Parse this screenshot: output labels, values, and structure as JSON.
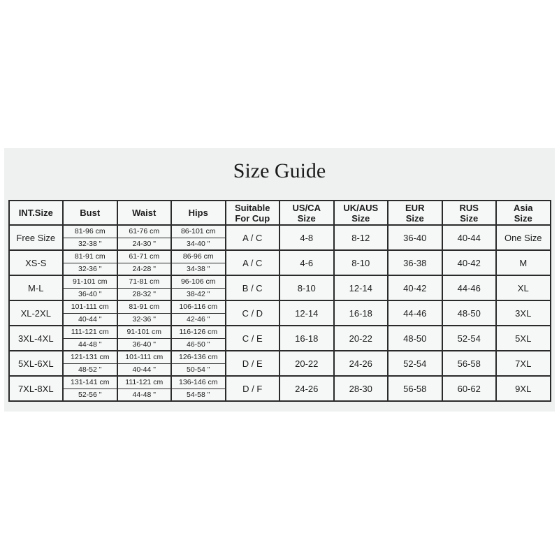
{
  "title": "Size Guide",
  "table": {
    "headers": [
      {
        "key": "int-size",
        "label": "INT.Size"
      },
      {
        "key": "bust",
        "label": "Bust"
      },
      {
        "key": "waist",
        "label": "Waist"
      },
      {
        "key": "hips",
        "label": "Hips"
      },
      {
        "key": "cup",
        "label": "Suitable\nFor Cup"
      },
      {
        "key": "us-ca",
        "label": "US/CA\nSize"
      },
      {
        "key": "uk-aus",
        "label": "UK/AUS\nSize"
      },
      {
        "key": "eur",
        "label": "EUR\nSize"
      },
      {
        "key": "rus",
        "label": "RUS\nSize"
      },
      {
        "key": "asia",
        "label": "Asia\nSize"
      }
    ],
    "rows": [
      {
        "int_size": "Free Size",
        "bust_cm": "81-96 cm",
        "bust_in": "32-38 \"",
        "waist_cm": "61-76 cm",
        "waist_in": "24-30 \"",
        "hips_cm": "86-101 cm",
        "hips_in": "34-40 \"",
        "cup": "A / C",
        "us_ca": "4-8",
        "uk_aus": "8-12",
        "eur": "36-40",
        "rus": "40-44",
        "asia": "One Size"
      },
      {
        "int_size": "XS-S",
        "bust_cm": "81-91 cm",
        "bust_in": "32-36 \"",
        "waist_cm": "61-71 cm",
        "waist_in": "24-28 \"",
        "hips_cm": "86-96 cm",
        "hips_in": "34-38 \"",
        "cup": "A / C",
        "us_ca": "4-6",
        "uk_aus": "8-10",
        "eur": "36-38",
        "rus": "40-42",
        "asia": "M"
      },
      {
        "int_size": "M-L",
        "bust_cm": "91-101 cm",
        "bust_in": "36-40 \"",
        "waist_cm": "71-81 cm",
        "waist_in": "28-32 \"",
        "hips_cm": "96-106 cm",
        "hips_in": "38-42 \"",
        "cup": "B / C",
        "us_ca": "8-10",
        "uk_aus": "12-14",
        "eur": "40-42",
        "rus": "44-46",
        "asia": "XL"
      },
      {
        "int_size": "XL-2XL",
        "bust_cm": "101-111 cm",
        "bust_in": "40-44 \"",
        "waist_cm": "81-91 cm",
        "waist_in": "32-36 \"",
        "hips_cm": "106-116 cm",
        "hips_in": "42-46 \"",
        "cup": "C / D",
        "us_ca": "12-14",
        "uk_aus": "16-18",
        "eur": "44-46",
        "rus": "48-50",
        "asia": "3XL"
      },
      {
        "int_size": "3XL-4XL",
        "bust_cm": "111-121 cm",
        "bust_in": "44-48 \"",
        "waist_cm": "91-101 cm",
        "waist_in": "36-40 \"",
        "hips_cm": "116-126 cm",
        "hips_in": "46-50 \"",
        "cup": "C / E",
        "us_ca": "16-18",
        "uk_aus": "20-22",
        "eur": "48-50",
        "rus": "52-54",
        "asia": "5XL"
      },
      {
        "int_size": "5XL-6XL",
        "bust_cm": "121-131 cm",
        "bust_in": "48-52 \"",
        "waist_cm": "101-111 cm",
        "waist_in": "40-44 \"",
        "hips_cm": "126-136 cm",
        "hips_in": "50-54 \"",
        "cup": "D / E",
        "us_ca": "20-22",
        "uk_aus": "24-26",
        "eur": "52-54",
        "rus": "56-58",
        "asia": "7XL"
      },
      {
        "int_size": "7XL-8XL",
        "bust_cm": "131-141 cm",
        "bust_in": "52-56 \"",
        "waist_cm": "111-121 cm",
        "waist_in": "44-48 \"",
        "hips_cm": "136-146 cm",
        "hips_in": "54-58 \"",
        "cup": "D / F",
        "us_ca": "24-26",
        "uk_aus": "28-30",
        "eur": "56-58",
        "rus": "60-62",
        "asia": "9XL"
      }
    ]
  }
}
